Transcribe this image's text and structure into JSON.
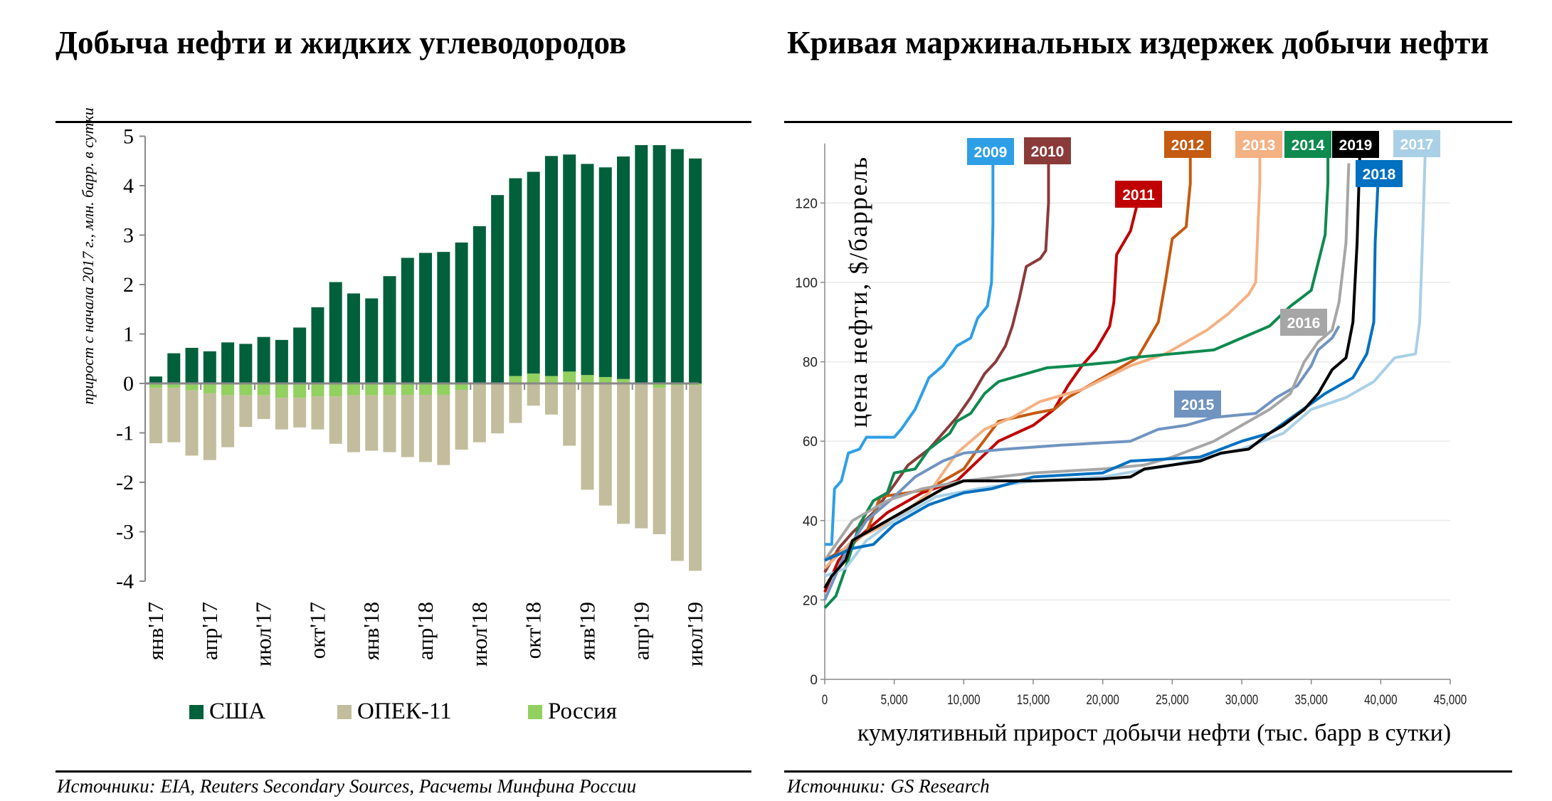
{
  "left": {
    "title": "Добыча нефти и жидких углеводородов",
    "source": "Источники: EIA, Reuters Secondary Sources, Расчеты Минфина России",
    "legend": [
      {
        "label": "США",
        "color": "#00603C"
      },
      {
        "label": "ОПЕК-11",
        "color": "#C2BD9C"
      },
      {
        "label": "Россия",
        "color": "#92D060"
      }
    ]
  },
  "right": {
    "title": "Кривая маржинальных издержек добычи нефти",
    "source": "Источники: GS Research"
  },
  "chart_data": [
    {
      "type": "bar",
      "stacked": true,
      "ylabel": "прирост с начала 2017 г., млн. барр. в сутки",
      "ylim": [
        -4,
        5
      ],
      "yticks": [
        "5",
        "4",
        "3",
        "2",
        "1",
        "0",
        "-1",
        "-2",
        "-3",
        "-4"
      ],
      "tick_labels": [
        "янв'17",
        "апр'17",
        "июл'17",
        "окт'17",
        "янв'18",
        "апр'18",
        "июл'18",
        "окт'18",
        "янв'19",
        "апр'19",
        "июл'19"
      ],
      "categories": [
        "янв'17",
        "фев'17",
        "мар'17",
        "апр'17",
        "май'17",
        "июн'17",
        "июл'17",
        "авг'17",
        "сен'17",
        "окт'17",
        "ноя'17",
        "дек'17",
        "янв'18",
        "фев'18",
        "мар'18",
        "апр'18",
        "май'18",
        "июн'18",
        "июл'18",
        "авг'18",
        "сен'18",
        "окт'18",
        "ноя'18",
        "дек'18",
        "янв'19",
        "фев'19",
        "мар'19",
        "апр'19",
        "май'19",
        "июн'19",
        "июл'19"
      ],
      "legend_position": "bottom",
      "series": [
        {
          "name": "США",
          "color": "#00603C",
          "values": [
            0.14,
            0.61,
            0.72,
            0.65,
            0.83,
            0.8,
            0.94,
            0.88,
            1.13,
            1.54,
            2.05,
            1.82,
            1.72,
            2.17,
            2.54,
            2.64,
            2.66,
            2.85,
            3.18,
            3.81,
            4.0,
            4.08,
            4.45,
            4.39,
            4.27,
            4.24,
            4.5,
            4.82,
            4.82,
            4.74,
            4.55
          ]
        },
        {
          "name": "ОПЕК-11",
          "color": "#C2BD9C",
          "values": [
            -1.12,
            -1.1,
            -1.32,
            -1.35,
            -1.05,
            -0.64,
            -0.48,
            -0.64,
            -0.6,
            -0.67,
            -0.96,
            -1.15,
            -1.12,
            -1.15,
            -1.26,
            -1.36,
            -1.42,
            -1.21,
            -1.19,
            -1.01,
            -0.8,
            -0.45,
            -0.63,
            -1.26,
            -2.15,
            -2.47,
            -2.84,
            -2.93,
            -2.96,
            -3.55,
            -3.75
          ]
        },
        {
          "name": "Россия",
          "color": "#92D060",
          "values": [
            -0.09,
            -0.09,
            -0.14,
            -0.2,
            -0.24,
            -0.24,
            -0.24,
            -0.29,
            -0.29,
            -0.26,
            -0.26,
            -0.24,
            -0.24,
            -0.24,
            -0.23,
            -0.23,
            -0.23,
            -0.13,
            0.0,
            0.0,
            0.15,
            0.2,
            0.15,
            0.24,
            0.17,
            0.13,
            0.09,
            0.0,
            -0.09,
            -0.04,
            -0.04
          ]
        }
      ]
    },
    {
      "type": "line",
      "xlabel": "кумулятивный прирост добычи нефти (тыс. барр в сутки)",
      "ylabel": "цена нефти, $/баррель",
      "xlim": [
        0,
        45000
      ],
      "ylim": [
        0,
        135
      ],
      "xticks": [
        "0",
        "5,000",
        "10,000",
        "15,000",
        "20,000",
        "25,000",
        "30,000",
        "35,000",
        "40,000",
        "45,000"
      ],
      "yticks": [
        "0",
        "20",
        "40",
        "60",
        "80",
        "100",
        "120"
      ],
      "grid": true,
      "series": [
        {
          "name": "2009",
          "color": "#2E9FE6",
          "x": [
            0,
            500,
            700,
            1200,
            1700,
            2500,
            3000,
            5000,
            5500,
            6500,
            7500,
            8500,
            9500,
            10500,
            11000,
            11700,
            12000,
            12100,
            12100
          ],
          "y": [
            34,
            34,
            48,
            50,
            57,
            58,
            61,
            61,
            63,
            68,
            76,
            79,
            84,
            86,
            91,
            94,
            100,
            115,
            130
          ]
        },
        {
          "name": "2010",
          "color": "#8B3A3A",
          "x": [
            0,
            1000,
            2000,
            3500,
            5000,
            6000,
            7500,
            8500,
            9500,
            10500,
            11500,
            12300,
            13000,
            13500,
            14000,
            14500,
            15500,
            15900,
            16100,
            16100
          ],
          "y": [
            27,
            33,
            37,
            42,
            49,
            54,
            58,
            62,
            66,
            71,
            77,
            80,
            84,
            89,
            96,
            104,
            106,
            108,
            120,
            130
          ]
        },
        {
          "name": "2011",
          "color": "#C00000",
          "x": [
            0,
            1000,
            2500,
            4500,
            7000,
            9500,
            11000,
            12500,
            15000,
            16500,
            17500,
            18500,
            19500,
            20500,
            20800,
            21000,
            22000,
            22500
          ],
          "y": [
            22,
            30,
            36,
            42,
            47,
            50,
            55,
            60,
            64,
            68,
            74,
            79,
            83,
            89,
            95,
            107,
            113,
            120
          ]
        },
        {
          "name": "2012",
          "color": "#C55A11",
          "x": [
            0,
            1500,
            3000,
            4000,
            6000,
            7500,
            10000,
            11000,
            12500,
            15000,
            16500,
            17500,
            19500,
            21500,
            22500,
            23000,
            24000,
            24500,
            25000,
            26000,
            26300,
            26300
          ],
          "y": [
            30,
            33,
            37,
            46,
            47,
            48,
            53,
            58,
            65,
            67,
            68,
            71,
            75,
            79,
            81,
            84,
            90,
            100,
            111,
            114,
            125,
            133
          ]
        },
        {
          "name": "2013",
          "color": "#F4B183",
          "x": [
            0,
            2000,
            5000,
            7500,
            9500,
            11500,
            13500,
            15500,
            18500,
            22000,
            24500,
            27500,
            29000,
            30500,
            31000,
            31300,
            31300
          ],
          "y": [
            28,
            35,
            40,
            47,
            57,
            63,
            66,
            70,
            73,
            79,
            82,
            88,
            92,
            97,
            100,
            125,
            133
          ]
        },
        {
          "name": "2014",
          "color": "#0E8A4F",
          "x": [
            0,
            800,
            1500,
            2500,
            3500,
            4500,
            5000,
            6500,
            7500,
            9000,
            9500,
            10500,
            11500,
            12500,
            14500,
            16000,
            18000,
            21000,
            22000,
            25000,
            28000,
            30000,
            32000,
            33500,
            35000,
            35500,
            36000,
            36200,
            36200
          ],
          "y": [
            18,
            21,
            28,
            39,
            45,
            47,
            52,
            53,
            58,
            62,
            65,
            67,
            72,
            75,
            77,
            78.5,
            79,
            80,
            81,
            82,
            83,
            86,
            89,
            94,
            98,
            105,
            112,
            125,
            133
          ]
        },
        {
          "name": "2015",
          "color": "#7094C0",
          "x": [
            0,
            1500,
            3000,
            5000,
            6500,
            8500,
            10000,
            13000,
            17000,
            22000,
            24000,
            26000,
            28000,
            31000,
            32500,
            34000,
            35000,
            35500,
            36500,
            37000
          ],
          "y": [
            20,
            32,
            40,
            46,
            51,
            55,
            57,
            58,
            59,
            60,
            63,
            64,
            66,
            67,
            71,
            74,
            79,
            83,
            86,
            89
          ]
        },
        {
          "name": "2016",
          "color": "#A6A6A6",
          "x": [
            0,
            2000,
            4500,
            7000,
            10000,
            15000,
            20000,
            23000,
            25000,
            28000,
            30000,
            32000,
            33500,
            34500,
            35500,
            36500,
            37000,
            37500,
            37700
          ],
          "y": [
            30,
            40,
            45,
            48,
            50,
            52,
            53,
            54,
            56,
            60,
            64,
            68,
            72,
            80,
            85,
            88,
            95,
            110,
            130
          ]
        },
        {
          "name": "2017",
          "color": "#A9D0E6",
          "x": [
            0,
            1500,
            3000,
            5000,
            8000,
            11000,
            15000,
            20000,
            25000,
            30000,
            33000,
            35000,
            37500,
            39500,
            40500,
            41000,
            42500,
            42800,
            43000,
            43200
          ],
          "y": [
            26,
            28,
            35,
            40,
            46,
            48,
            50,
            51,
            54,
            58,
            62,
            68,
            71,
            75,
            79,
            81,
            82,
            90,
            110,
            133
          ]
        },
        {
          "name": "2018",
          "color": "#0070C0",
          "x": [
            0,
            2000,
            3500,
            5000,
            7500,
            10000,
            12000,
            15000,
            20000,
            22000,
            27000,
            30000,
            32000,
            34000,
            36000,
            38000,
            39000,
            39500,
            39600,
            39800
          ],
          "y": [
            30,
            33,
            34,
            39,
            44,
            47,
            48,
            51,
            52,
            55,
            56,
            60,
            62,
            67,
            72,
            76,
            82,
            90,
            110,
            125
          ]
        },
        {
          "name": "2019",
          "color": "#000000",
          "x": [
            0,
            500,
            1500,
            2000,
            3500,
            5000,
            7000,
            8500,
            10000,
            15000,
            20000,
            22000,
            23000,
            25000,
            27000,
            28500,
            30500,
            32000,
            33000,
            34500,
            35500,
            36500,
            37500,
            38000,
            38300,
            38500
          ],
          "y": [
            23,
            26,
            30,
            35,
            38,
            41,
            45,
            48,
            50,
            50,
            50.5,
            51,
            53,
            54,
            55,
            57,
            58,
            62,
            64,
            68,
            72,
            78,
            81,
            90,
            110,
            133
          ]
        }
      ]
    }
  ]
}
